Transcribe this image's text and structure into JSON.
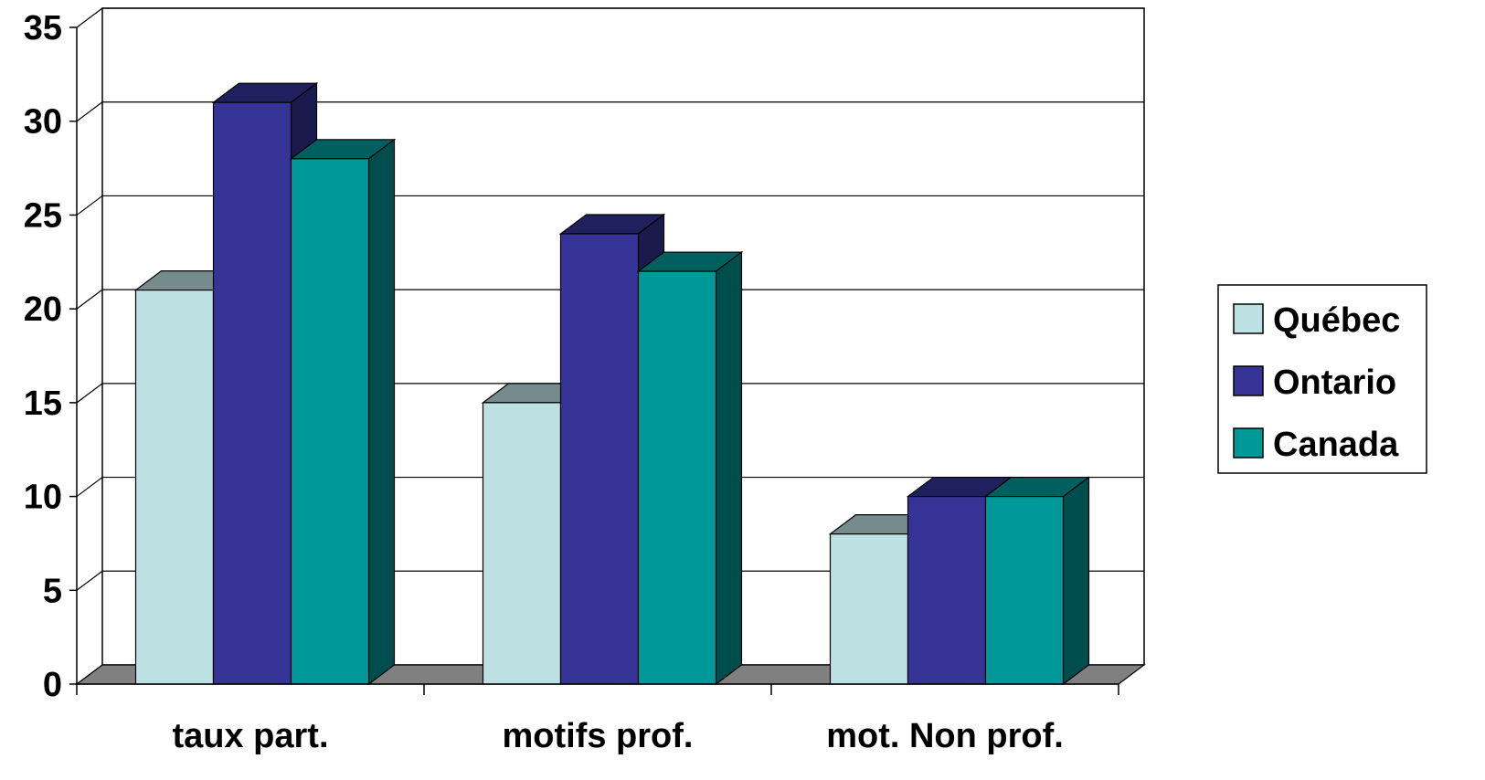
{
  "chart_data": {
    "type": "bar",
    "title": "",
    "xlabel": "",
    "ylabel": "",
    "ylim": [
      0,
      35
    ],
    "yticks": [
      0,
      5,
      10,
      15,
      20,
      25,
      30,
      35
    ],
    "grid": true,
    "three_d": true,
    "legend_position": "right",
    "categories": [
      "taux part.",
      "motifs prof.",
      "mot. Non prof."
    ],
    "series": [
      {
        "name": "Québec",
        "values": [
          21,
          15,
          8
        ],
        "color": "#BDE0E3"
      },
      {
        "name": "Ontario",
        "values": [
          31,
          24,
          10
        ],
        "color": "#363397"
      },
      {
        "name": "Canada",
        "values": [
          28,
          22,
          10
        ],
        "color": "#009999"
      }
    ]
  }
}
